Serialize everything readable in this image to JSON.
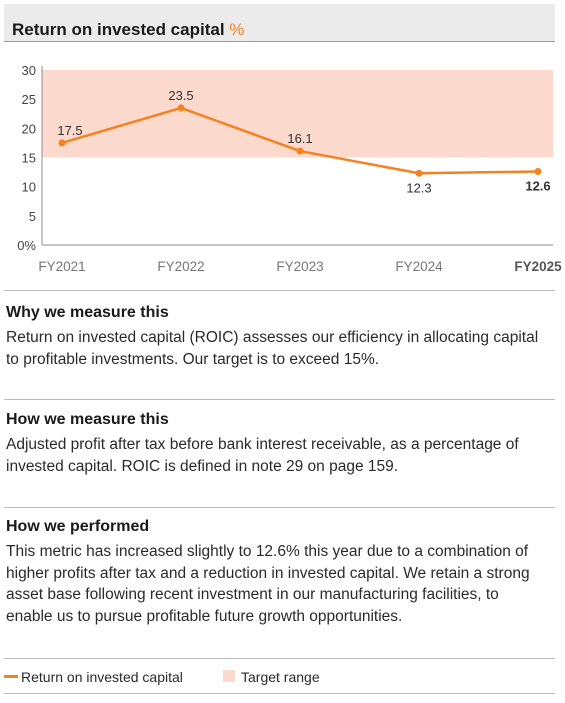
{
  "header": {
    "title": "Return on invested capital",
    "unit": "%"
  },
  "chart_data": {
    "type": "line",
    "categories": [
      "FY2021",
      "FY2022",
      "FY2023",
      "FY2024",
      "FY2025"
    ],
    "highlight_category": "FY2025",
    "series": [
      {
        "name": "Return on invested capital",
        "values": [
          17.5,
          23.5,
          16.1,
          12.3,
          12.6
        ],
        "labels": [
          "17.5",
          "23.5",
          "16.1",
          "12.3",
          "12.6"
        ],
        "color": "#f58220"
      }
    ],
    "target_range": {
      "label": "Target range",
      "from": 15,
      "to": 30,
      "color": "#fbd9cc"
    },
    "y_ticks": [
      "0%",
      "5",
      "10",
      "15",
      "20",
      "25",
      "30"
    ],
    "ylim": [
      0,
      30
    ],
    "grid": false,
    "legend_position": "bottom"
  },
  "sections": {
    "why": {
      "heading": "Why we measure this",
      "body": "Return on invested capital (ROIC) assesses our efficiency in allocating capital to profitable investments. Our target is to exceed 15%."
    },
    "how": {
      "heading": "How we measure this",
      "body": "Adjusted profit after tax before bank interest receivable, as a percentage of invested capital. ROIC is defined in note 29 on page 159."
    },
    "performed": {
      "heading": "How we performed",
      "body": "This metric has increased slightly to 12.6% this year due to a combination of higher profits after tax and a reduction in invested capital. We retain a strong asset base following recent investment in our manufacturing facilities, to enable us to pursue profitable future growth opportunities."
    }
  },
  "legend": {
    "line_label": "Return on invested capital",
    "range_label": "Target range"
  }
}
